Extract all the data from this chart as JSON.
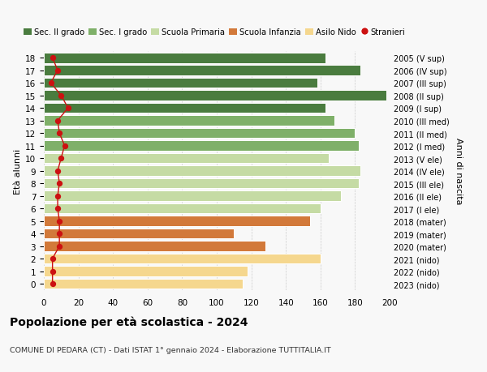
{
  "ages": [
    0,
    1,
    2,
    3,
    4,
    5,
    6,
    7,
    8,
    9,
    10,
    11,
    12,
    13,
    14,
    15,
    16,
    17,
    18
  ],
  "years": [
    "2023 (nido)",
    "2022 (nido)",
    "2021 (nido)",
    "2020 (mater)",
    "2019 (mater)",
    "2018 (mater)",
    "2017 (I ele)",
    "2016 (II ele)",
    "2015 (III ele)",
    "2014 (IV ele)",
    "2013 (V ele)",
    "2012 (I med)",
    "2011 (II med)",
    "2010 (III med)",
    "2009 (I sup)",
    "2008 (II sup)",
    "2007 (III sup)",
    "2006 (IV sup)",
    "2005 (V sup)"
  ],
  "values": [
    115,
    118,
    160,
    128,
    110,
    154,
    160,
    172,
    182,
    183,
    165,
    182,
    180,
    168,
    163,
    198,
    158,
    183,
    163
  ],
  "stranieri": [
    5,
    5,
    5,
    9,
    9,
    9,
    8,
    8,
    9,
    8,
    10,
    12,
    9,
    8,
    14,
    10,
    4,
    8,
    5
  ],
  "bar_colors": {
    "sec2": "#4a7c3f",
    "sec1": "#7fb069",
    "primaria": "#c5dba4",
    "infanzia": "#d2793a",
    "nido": "#f5d78e"
  },
  "age_groups": {
    "sec2": [
      14,
      15,
      16,
      17,
      18
    ],
    "sec1": [
      11,
      12,
      13
    ],
    "primaria": [
      6,
      7,
      8,
      9,
      10
    ],
    "infanzia": [
      3,
      4,
      5
    ],
    "nido": [
      0,
      1,
      2
    ]
  },
  "legend_labels": [
    "Sec. II grado",
    "Sec. I grado",
    "Scuola Primaria",
    "Scuola Infanzia",
    "Asilo Nido",
    "Stranieri"
  ],
  "title": "Popolazione per età scolastica - 2024",
  "subtitle": "COMUNE DI PEDARA (CT) - Dati ISTAT 1° gennaio 2024 - Elaborazione TUTTITALIA.IT",
  "ylabel_left": "Età alunni",
  "ylabel_right": "Anni di nascita",
  "xlim": [
    0,
    200
  ],
  "xticks": [
    0,
    20,
    40,
    60,
    80,
    100,
    120,
    140,
    160,
    180,
    200
  ],
  "background_color": "#f8f8f8",
  "plot_bg_color": "#f8f8f8",
  "grid_color": "#cccccc",
  "stranieri_color": "#cc1111"
}
